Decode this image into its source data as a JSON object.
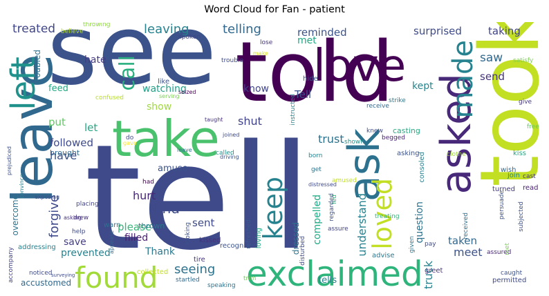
{
  "title": "Word Cloud for Fan - patient",
  "words": [
    {
      "text": "tell",
      "color": "#3e4a89"
    },
    {
      "text": "see",
      "color": "#3b528b"
    },
    {
      "text": "told",
      "color": "#440154"
    },
    {
      "text": "took",
      "color": "#c2df23"
    },
    {
      "text": "take",
      "color": "#4ac16d"
    },
    {
      "text": "leave",
      "color": "#31688e"
    },
    {
      "text": "love",
      "color": "#440154"
    },
    {
      "text": "ask",
      "color": "#2c728e"
    },
    {
      "text": "asked",
      "color": "#482878"
    },
    {
      "text": "exclaimed",
      "color": "#2fb47c"
    },
    {
      "text": "found",
      "color": "#a2da37"
    },
    {
      "text": "left",
      "color": "#21918c"
    },
    {
      "text": "made",
      "color": "#26828e"
    },
    {
      "text": "keep",
      "color": "#26828e"
    },
    {
      "text": "loved",
      "color": "#c2df23"
    },
    {
      "text": "call",
      "color": "#29af7f"
    },
    {
      "text": "treated",
      "color": "#404688"
    },
    {
      "text": "leaving",
      "color": "#26828e"
    },
    {
      "text": "telling",
      "color": "#31688e"
    },
    {
      "text": "reminded",
      "color": "#3b528b"
    },
    {
      "text": "surprised",
      "color": "#3e4a89"
    },
    {
      "text": "taking",
      "color": "#414487"
    },
    {
      "text": "saw",
      "color": "#31688e"
    },
    {
      "text": "send",
      "color": "#46327e"
    },
    {
      "text": "hate",
      "color": "#443983"
    },
    {
      "text": "watching",
      "color": "#1fa187"
    },
    {
      "text": "know",
      "color": "#414487"
    },
    {
      "text": "Tell",
      "color": "#3b528b"
    },
    {
      "text": "kept",
      "color": "#25848e"
    },
    {
      "text": "met",
      "color": "#22a884"
    },
    {
      "text": "feed",
      "color": "#22a884"
    },
    {
      "text": "put",
      "color": "#5ec962"
    },
    {
      "text": "show",
      "color": "#9fda3a"
    },
    {
      "text": "shut",
      "color": "#414487"
    },
    {
      "text": "let",
      "color": "#22a884"
    },
    {
      "text": "followed",
      "color": "#3e4a89"
    },
    {
      "text": "have",
      "color": "#3b528b"
    },
    {
      "text": "trust",
      "color": "#2c728e"
    },
    {
      "text": "forgive",
      "color": "#3e4a89"
    },
    {
      "text": "hurt",
      "color": "#482878"
    },
    {
      "text": "find",
      "color": "#3e4a89"
    },
    {
      "text": "please",
      "color": "#35b779"
    },
    {
      "text": "filled",
      "color": "#481f70"
    },
    {
      "text": "sent",
      "color": "#3e4a89"
    },
    {
      "text": "seeing",
      "color": "#2c728e"
    },
    {
      "text": "amuse",
      "color": "#3b528b"
    },
    {
      "text": "overcome",
      "color": "#2c728e"
    },
    {
      "text": "understand",
      "color": "#26828e"
    },
    {
      "text": "question",
      "color": "#2c728e"
    },
    {
      "text": "compelled",
      "color": "#22a884"
    },
    {
      "text": "dressed",
      "color": "#2c728e"
    },
    {
      "text": "taken",
      "color": "#31688e"
    },
    {
      "text": "meet",
      "color": "#3b528b"
    },
    {
      "text": "tells",
      "color": "#26828e"
    },
    {
      "text": "struck",
      "color": "#26828e"
    },
    {
      "text": "save",
      "color": "#433e85"
    },
    {
      "text": "prevented",
      "color": "#26828e"
    },
    {
      "text": "Thank",
      "color": "#2a788e"
    },
    {
      "text": "accustomed",
      "color": "#31688e"
    },
    {
      "text": "troubled",
      "color": "#2c728e"
    },
    {
      "text": "brought",
      "color": "#31688e"
    },
    {
      "text": "throwing",
      "color": "#8fd744"
    },
    {
      "text": "believe",
      "color": "#b5de2b"
    },
    {
      "text": "spoken",
      "color": "#414487"
    },
    {
      "text": "like",
      "color": "#3b528b"
    },
    {
      "text": "seized",
      "color": "#440154"
    },
    {
      "text": "trouble",
      "color": "#3e4a89"
    },
    {
      "text": "make",
      "color": "#d8e219"
    },
    {
      "text": "lose",
      "color": "#46337f"
    },
    {
      "text": "hide",
      "color": "#3b528b"
    },
    {
      "text": "instructed",
      "color": "#26828e"
    },
    {
      "text": "receive",
      "color": "#31688e"
    },
    {
      "text": "strike",
      "color": "#2a788e"
    },
    {
      "text": "satisfy",
      "color": "#7ad151"
    },
    {
      "text": "give",
      "color": "#453882"
    },
    {
      "text": "free",
      "color": "#5ec962"
    },
    {
      "text": "confused",
      "color": "#b5de2b"
    },
    {
      "text": "serving",
      "color": "#7ad151"
    },
    {
      "text": "do",
      "color": "#3e4a89"
    },
    {
      "text": "gave",
      "color": "#fde725"
    },
    {
      "text": "had",
      "color": "#440154"
    },
    {
      "text": "taught",
      "color": "#46327e"
    },
    {
      "text": "called",
      "color": "#21918c"
    },
    {
      "text": "joined",
      "color": "#3e4a89"
    },
    {
      "text": "born",
      "color": "#26828e"
    },
    {
      "text": "get",
      "color": "#2c728e"
    },
    {
      "text": "knew",
      "color": "#3e4a89"
    },
    {
      "text": "shown",
      "color": "#21918c"
    },
    {
      "text": "begged",
      "color": "#482173"
    },
    {
      "text": "asking",
      "color": "#3b528b"
    },
    {
      "text": "casting",
      "color": "#25ab82"
    },
    {
      "text": "clothe",
      "color": "#9fda3a"
    },
    {
      "text": "kiss",
      "color": "#22a884"
    },
    {
      "text": "wish",
      "color": "#31688e"
    },
    {
      "text": "join",
      "color": "#26828e"
    },
    {
      "text": "cast",
      "color": "#46327e"
    },
    {
      "text": "read",
      "color": "#481b6d"
    },
    {
      "text": "turned",
      "color": "#443983"
    },
    {
      "text": "consoled",
      "color": "#27808e"
    },
    {
      "text": "amused",
      "color": "#c2df23"
    },
    {
      "text": "placing",
      "color": "#414487"
    },
    {
      "text": "drew",
      "color": "#46337f"
    },
    {
      "text": "help",
      "color": "#3e4a89"
    },
    {
      "text": "warn",
      "color": "#2c728e"
    },
    {
      "text": "thrown",
      "color": "#2a788e"
    },
    {
      "text": "kissed",
      "color": "#46327e"
    },
    {
      "text": "recognised",
      "color": "#3b528b"
    },
    {
      "text": "refreshed",
      "color": "#35608d"
    },
    {
      "text": "loving",
      "color": "#22a884"
    },
    {
      "text": "disturbed",
      "color": "#3e4a89"
    },
    {
      "text": "led",
      "color": "#25ab82"
    },
    {
      "text": "treating",
      "color": "#35b779"
    },
    {
      "text": "received",
      "color": "#2c728e"
    },
    {
      "text": "given",
      "color": "#2a788e"
    },
    {
      "text": "pay",
      "color": "#3e4a89"
    },
    {
      "text": "assure",
      "color": "#414487"
    },
    {
      "text": "collected",
      "color": "#c2df23"
    },
    {
      "text": "startled",
      "color": "#31688e"
    },
    {
      "text": "tire",
      "color": "#46327e"
    },
    {
      "text": "trim",
      "color": "#6ece58"
    },
    {
      "text": "advise",
      "color": "#2a788e"
    },
    {
      "text": "greet",
      "color": "#46327e"
    },
    {
      "text": "assured",
      "color": "#482878"
    },
    {
      "text": "permitted",
      "color": "#3e4a89"
    },
    {
      "text": "met",
      "color": "#7ad151"
    },
    {
      "text": "caught",
      "color": "#3b528b"
    },
    {
      "text": "noticed",
      "color": "#3e4a89"
    },
    {
      "text": "surveying",
      "color": "#3e4a89"
    },
    {
      "text": "addressing",
      "color": "#26828e"
    },
    {
      "text": "speaking",
      "color": "#2c728e"
    },
    {
      "text": "accompany",
      "color": "#414487"
    },
    {
      "text": "appease",
      "color": "#31688e"
    },
    {
      "text": "asking",
      "color": "#46327e"
    },
    {
      "text": "exposing",
      "color": "#3b528b"
    },
    {
      "text": "convince",
      "color": "#26828e"
    },
    {
      "text": "prejudiced",
      "color": "#3b528b"
    },
    {
      "text": "looking",
      "color": "#3b528b"
    },
    {
      "text": "leave",
      "color": "#2c728e"
    },
    {
      "text": "driving",
      "color": "#3b528b"
    },
    {
      "text": "distressed",
      "color": "#3e4a89"
    },
    {
      "text": "regarded",
      "color": "#3b528b"
    },
    {
      "text": "persuade",
      "color": "#3b528b"
    },
    {
      "text": "subjected",
      "color": "#3b528b"
    }
  ]
}
